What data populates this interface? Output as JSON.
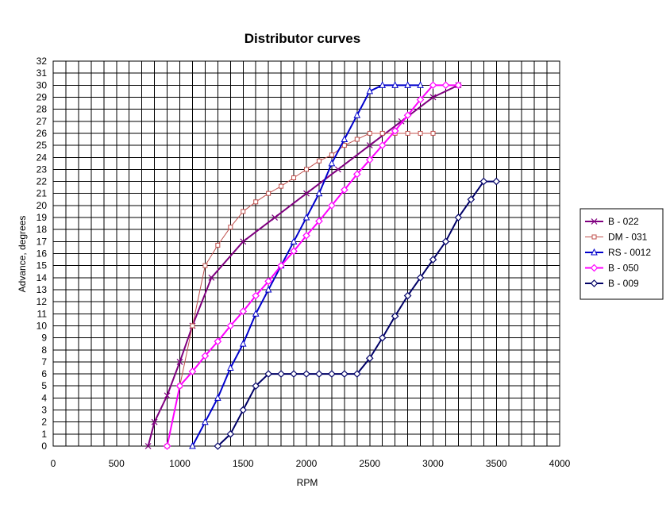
{
  "chart_data": {
    "type": "line",
    "title": "Distributor curves",
    "xlabel": "RPM",
    "ylabel": "Advance, degrees",
    "xlim": [
      0,
      4000
    ],
    "ylim": [
      0,
      32
    ],
    "x_ticks": [
      0,
      500,
      1000,
      1500,
      2000,
      2500,
      3000,
      3500,
      4000
    ],
    "y_ticks": [
      0,
      1,
      2,
      3,
      4,
      5,
      6,
      7,
      8,
      9,
      10,
      11,
      12,
      13,
      14,
      15,
      16,
      17,
      18,
      19,
      20,
      21,
      22,
      23,
      24,
      25,
      26,
      27,
      28,
      29,
      30,
      31,
      32
    ],
    "grid": true,
    "legend_position": "right",
    "series": [
      {
        "name": "B - 022",
        "color": "#800080",
        "marker": "x",
        "points": [
          [
            750,
            0
          ],
          [
            800,
            2
          ],
          [
            900,
            4.2
          ],
          [
            1000,
            7
          ],
          [
            1100,
            10
          ],
          [
            1250,
            14
          ],
          [
            1500,
            17
          ],
          [
            1750,
            19
          ],
          [
            2000,
            21
          ],
          [
            2250,
            23
          ],
          [
            2500,
            25
          ],
          [
            2750,
            27
          ],
          [
            3000,
            29
          ],
          [
            3200,
            30
          ]
        ]
      },
      {
        "name": "DM - 031",
        "color": "#c0504d",
        "marker": "square",
        "points": [
          [
            900,
            0
          ],
          [
            1000,
            5
          ],
          [
            1100,
            10
          ],
          [
            1200,
            15
          ],
          [
            1300,
            16.7
          ],
          [
            1400,
            18.2
          ],
          [
            1500,
            19.5
          ],
          [
            1600,
            20.3
          ],
          [
            1700,
            21
          ],
          [
            1800,
            21.6
          ],
          [
            1900,
            22.3
          ],
          [
            2000,
            23
          ],
          [
            2100,
            23.7
          ],
          [
            2200,
            24.2
          ],
          [
            2300,
            25
          ],
          [
            2400,
            25.5
          ],
          [
            2500,
            26
          ],
          [
            2600,
            26
          ],
          [
            2700,
            26
          ],
          [
            2800,
            26
          ],
          [
            2900,
            26
          ],
          [
            3000,
            26
          ]
        ]
      },
      {
        "name": "RS - 0012",
        "color": "#0000cc",
        "marker": "triangle",
        "points": [
          [
            1100,
            0
          ],
          [
            1200,
            2
          ],
          [
            1300,
            4
          ],
          [
            1400,
            6.5
          ],
          [
            1500,
            8.5
          ],
          [
            1600,
            11
          ],
          [
            1700,
            13
          ],
          [
            1800,
            15
          ],
          [
            1900,
            17
          ],
          [
            2000,
            19
          ],
          [
            2100,
            21
          ],
          [
            2200,
            23.5
          ],
          [
            2300,
            25.5
          ],
          [
            2400,
            27.5
          ],
          [
            2500,
            29.5
          ],
          [
            2600,
            30
          ],
          [
            2700,
            30
          ],
          [
            2800,
            30
          ],
          [
            2900,
            30
          ]
        ]
      },
      {
        "name": "B - 050",
        "color": "#ff00ff",
        "marker": "diamond",
        "points": [
          [
            900,
            0
          ],
          [
            1000,
            5
          ],
          [
            1100,
            6.2
          ],
          [
            1200,
            7.5
          ],
          [
            1300,
            8.7
          ],
          [
            1400,
            10
          ],
          [
            1500,
            11.2
          ],
          [
            1600,
            12.5
          ],
          [
            1700,
            13.7
          ],
          [
            1800,
            15
          ],
          [
            1900,
            16.2
          ],
          [
            2000,
            17.5
          ],
          [
            2100,
            18.7
          ],
          [
            2200,
            20
          ],
          [
            2300,
            21.3
          ],
          [
            2400,
            22.6
          ],
          [
            2500,
            23.8
          ],
          [
            2600,
            25
          ],
          [
            2700,
            26.2
          ],
          [
            2800,
            27.5
          ],
          [
            2900,
            28.8
          ],
          [
            3000,
            30
          ],
          [
            3100,
            30
          ],
          [
            3200,
            30
          ]
        ]
      },
      {
        "name": "B - 009",
        "color": "#000066",
        "marker": "diamond",
        "points": [
          [
            1300,
            0
          ],
          [
            1400,
            1
          ],
          [
            1500,
            3
          ],
          [
            1600,
            5
          ],
          [
            1700,
            6
          ],
          [
            1800,
            6
          ],
          [
            1900,
            6
          ],
          [
            2000,
            6
          ],
          [
            2100,
            6
          ],
          [
            2200,
            6
          ],
          [
            2300,
            6
          ],
          [
            2400,
            6
          ],
          [
            2500,
            7.3
          ],
          [
            2600,
            9
          ],
          [
            2700,
            10.8
          ],
          [
            2800,
            12.5
          ],
          [
            2900,
            14
          ],
          [
            3000,
            15.5
          ],
          [
            3100,
            17
          ],
          [
            3200,
            19
          ],
          [
            3300,
            20.5
          ],
          [
            3400,
            22
          ],
          [
            3500,
            22
          ]
        ]
      }
    ]
  }
}
